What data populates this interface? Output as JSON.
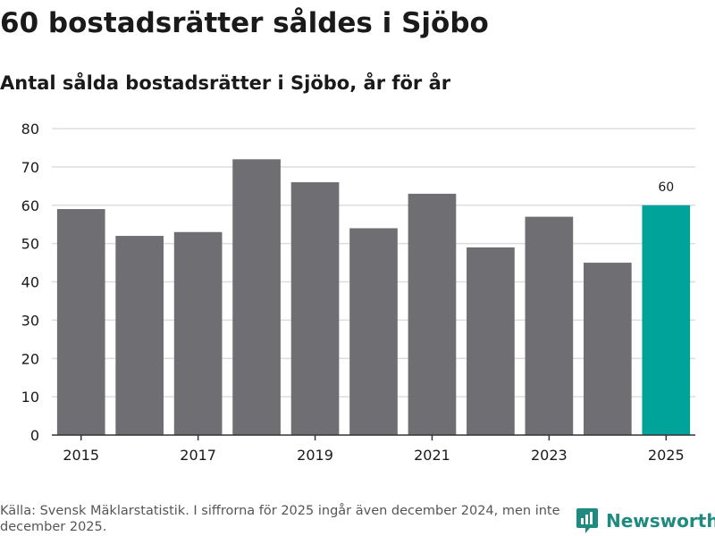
{
  "title": "60 bostadsrätter såldes i Sjöbo",
  "subtitle": "Antal sålda bostadsrätter i Sjöbo, år för år",
  "footer": {
    "source": "Källa: Svensk Mäklarstatistik. I siffrorna för 2025 ingår även december 2024, men inte december 2025.",
    "brand": "Newsworthy"
  },
  "colors": {
    "bar": "#6f6e73",
    "highlight": "#00a39a",
    "grid": "#dddddd",
    "axis": "#333333",
    "brand": "#1f8a80"
  },
  "chart_data": {
    "type": "bar",
    "title": "60 bostadsrätter såldes i Sjöbo",
    "subtitle": "Antal sålda bostadsrätter i Sjöbo, år för år",
    "xlabel": "",
    "ylabel": "",
    "categories": [
      "2015",
      "2016",
      "2017",
      "2018",
      "2019",
      "2020",
      "2021",
      "2022",
      "2023",
      "2024",
      "2025"
    ],
    "values": [
      59,
      52,
      53,
      72,
      66,
      54,
      63,
      49,
      57,
      45,
      60
    ],
    "x_tick_labels": [
      "2015",
      "2017",
      "2019",
      "2021",
      "2023",
      "2025"
    ],
    "y_ticks": [
      0,
      10,
      20,
      30,
      40,
      50,
      60,
      70,
      80
    ],
    "ylim": [
      0,
      80
    ],
    "grid": true,
    "highlight_index": 10,
    "data_labels": [
      {
        "index": 10,
        "text": "60"
      }
    ]
  }
}
